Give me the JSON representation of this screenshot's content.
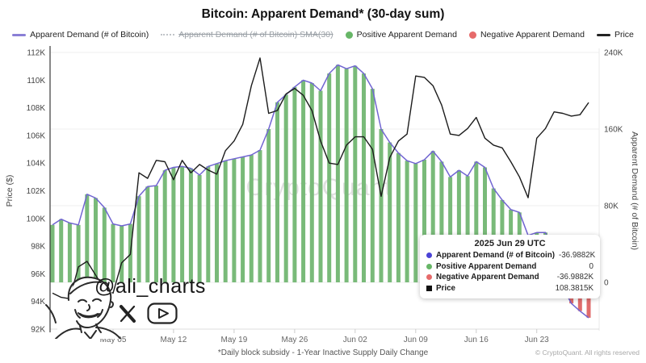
{
  "title": "Bitcoin: Apparent Demand* (30-day sum)",
  "watermark": "CryptoQuant",
  "signature": {
    "handle": "@ali_charts"
  },
  "footer": {
    "note": "*Daily block subsidy - 1-Year Inactive Supply Daily Change",
    "copyright": "© CryptoQuant. All rights reserved"
  },
  "legend": [
    {
      "label": "Apparent Demand (# of Bitcoin)",
      "swatch": "line",
      "color": "#8a7fd6",
      "strike": false
    },
    {
      "label": "Apparent Demand (# of Bitcoin) SMA(30)",
      "swatch": "dash",
      "color": "#c0c4c8",
      "strike": true
    },
    {
      "label": "Positive Apparent Demand",
      "swatch": "dot",
      "color": "#67b667",
      "strike": false
    },
    {
      "label": "Negative Apparent Demand",
      "swatch": "dot",
      "color": "#e66a6a",
      "strike": false
    },
    {
      "label": "Price",
      "swatch": "line",
      "color": "#222222",
      "strike": false
    }
  ],
  "tooltip": {
    "title": "2025 Jun 29 UTC",
    "rows": [
      {
        "label": "Apparent Demand (# of Bitcoin)",
        "value": "-36.9882K",
        "color": "#4b43d6",
        "shape": "circle"
      },
      {
        "label": "Positive Apparent Demand",
        "value": "0",
        "color": "#67b667",
        "shape": "circle"
      },
      {
        "label": "Negative Apparent Demand",
        "value": "-36.9882K",
        "color": "#e66a6a",
        "shape": "circle"
      },
      {
        "label": "Price",
        "value": "108.3815K",
        "color": "#111111",
        "shape": "square"
      }
    ]
  },
  "chart_data": {
    "type": "combo",
    "note": "Green bars = positive apparent demand (right axis, K BTC), red bars = negative; purple line = apparent demand; black line = BTC price (left axis, K USD)",
    "dates": [
      "Apr 28",
      "Apr 29",
      "Apr 30",
      "May 01",
      "May 02",
      "May 03",
      "May 04",
      "May 05",
      "May 06",
      "May 07",
      "May 08",
      "May 09",
      "May 10",
      "May 11",
      "May 12",
      "May 13",
      "May 14",
      "May 15",
      "May 16",
      "May 17",
      "May 18",
      "May 19",
      "May 20",
      "May 21",
      "May 22",
      "May 23",
      "May 24",
      "May 25",
      "May 26",
      "May 27",
      "May 28",
      "May 29",
      "May 30",
      "May 31",
      "Jun 01",
      "Jun 02",
      "Jun 03",
      "Jun 04",
      "Jun 05",
      "Jun 06",
      "Jun 07",
      "Jun 08",
      "Jun 09",
      "Jun 10",
      "Jun 11",
      "Jun 12",
      "Jun 13",
      "Jun 14",
      "Jun 15",
      "Jun 16",
      "Jun 17",
      "Jun 18",
      "Jun 19",
      "Jun 20",
      "Jun 21",
      "Jun 22",
      "Jun 23",
      "Jun 24",
      "Jun 25",
      "Jun 26",
      "Jun 27",
      "Jun 28",
      "Jun 29"
    ],
    "demand_k": [
      60,
      66,
      62,
      60,
      92,
      88,
      78,
      61,
      59,
      61,
      90,
      100,
      101,
      117,
      120,
      121,
      119,
      112,
      121,
      124,
      127,
      129,
      131,
      133,
      138,
      160,
      188,
      196,
      204,
      211,
      208,
      200,
      218,
      227,
      223,
      226,
      218,
      202,
      160,
      146,
      135,
      127,
      124,
      128,
      137,
      126,
      110,
      117,
      111,
      126,
      120,
      98,
      86,
      76,
      73,
      49,
      52,
      52,
      30,
      -5,
      -22,
      -30,
      -37
    ],
    "price_k": [
      94.6,
      94.3,
      94.2,
      96.5,
      96.9,
      95.9,
      94.9,
      94.6,
      96.8,
      97.4,
      103.3,
      102.9,
      104.2,
      104.1,
      102.8,
      104.2,
      103.3,
      103.9,
      103.5,
      103.2,
      104.9,
      105.6,
      106.8,
      109.6,
      111.6,
      107.6,
      107.8,
      109.0,
      109.4,
      108.9,
      107.8,
      105.6,
      104.0,
      103.9,
      105.3,
      105.9,
      105.9,
      105.0,
      101.6,
      104.4,
      105.6,
      106.1,
      110.3,
      110.2,
      109.6,
      108.2,
      106.1,
      106.0,
      106.5,
      107.3,
      105.8,
      105.3,
      105.1,
      104.1,
      103.0,
      101.5,
      105.8,
      106.5,
      107.7,
      107.6,
      107.4,
      107.5,
      108.38
    ],
    "left_axis": {
      "label": "Price ($)",
      "min": 92,
      "max": 112,
      "ticks": [
        {
          "value": 92,
          "label": "92K"
        },
        {
          "value": 94,
          "label": "94K"
        },
        {
          "value": 96,
          "label": "96K"
        },
        {
          "value": 98,
          "label": "98K"
        },
        {
          "value": 100,
          "label": "100K"
        },
        {
          "value": 102,
          "label": "102K"
        },
        {
          "value": 104,
          "label": "104K"
        },
        {
          "value": 106,
          "label": "106K"
        },
        {
          "value": 108,
          "label": "108K"
        },
        {
          "value": 110,
          "label": "110K"
        },
        {
          "value": 112,
          "label": "112K"
        }
      ]
    },
    "right_axis": {
      "label": "Apparent Demand (# of Bitcoin)",
      "min": -48.8,
      "max": 240,
      "ticks": [
        {
          "value": 0,
          "label": "0"
        },
        {
          "value": 80,
          "label": "80K"
        },
        {
          "value": 160,
          "label": "160K"
        },
        {
          "value": 240,
          "label": "240K"
        }
      ]
    },
    "x_ticks": [
      {
        "label": "May 05",
        "i": 7
      },
      {
        "label": "May 12",
        "i": 14
      },
      {
        "label": "May 19",
        "i": 21
      },
      {
        "label": "May 26",
        "i": 28
      },
      {
        "label": "Jun 02",
        "i": 35
      },
      {
        "label": "Jun 09",
        "i": 42
      },
      {
        "label": "Jun 16",
        "i": 49
      },
      {
        "label": "Jun 23",
        "i": 56
      }
    ],
    "colors": {
      "positive_bar": "#79ba79",
      "negative_bar": "#e06c6c",
      "demand_line": "#7165d2",
      "price_line": "#1c1c1c",
      "grid": "#efefef",
      "axis_text": "#444444"
    }
  }
}
